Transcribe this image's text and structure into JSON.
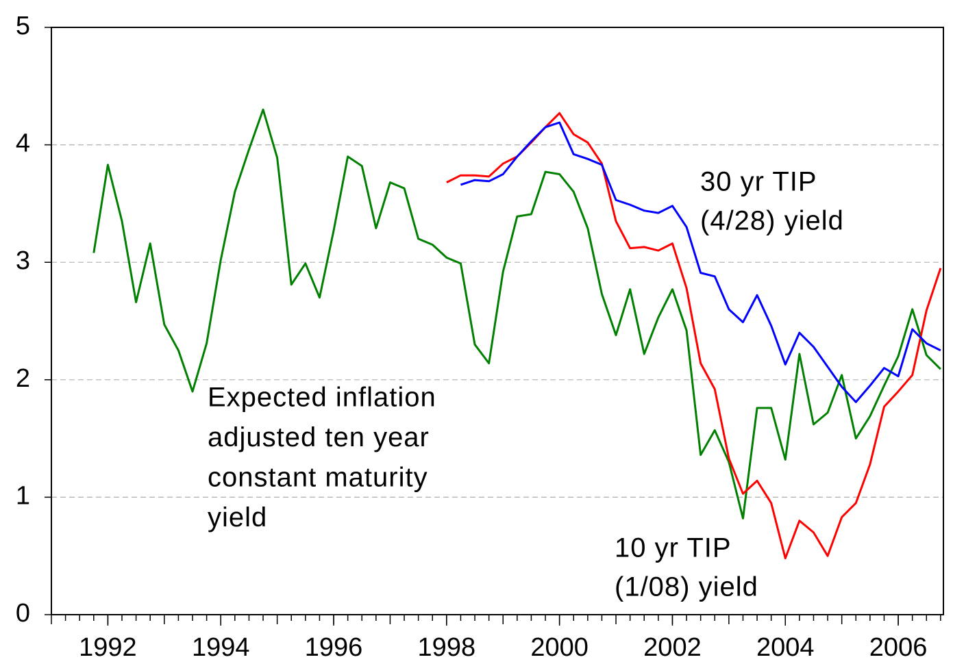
{
  "chart_data": {
    "type": "line",
    "x": [
      1991.75,
      1992,
      1992.25,
      1992.5,
      1992.75,
      1993,
      1993.25,
      1993.5,
      1993.75,
      1994,
      1994.25,
      1994.5,
      1994.75,
      1995,
      1995.25,
      1995.5,
      1995.75,
      1996,
      1996.25,
      1996.5,
      1996.75,
      1997,
      1997.25,
      1997.5,
      1997.75,
      1998,
      1998.25,
      1998.5,
      1998.75,
      1999,
      1999.25,
      1999.5,
      1999.75,
      2000,
      2000.25,
      2000.5,
      2000.75,
      2001,
      2001.25,
      2001.5,
      2001.75,
      2002,
      2002.25,
      2002.5,
      2002.75,
      2003,
      2003.25,
      2003.5,
      2003.75,
      2004,
      2004.25,
      2004.5,
      2004.75,
      2005,
      2005.25,
      2005.5,
      2005.75,
      2006,
      2006.25,
      2006.5,
      2006.75
    ],
    "series": [
      {
        "name": "Expected inflation adjusted ten year constant maturity yield",
        "color": "#008000",
        "values": [
          3.08,
          3.83,
          3.35,
          2.66,
          3.16,
          2.47,
          2.25,
          1.9,
          2.31,
          3.02,
          3.6,
          3.96,
          4.3,
          3.89,
          2.81,
          2.99,
          2.7,
          3.27,
          3.9,
          3.82,
          3.29,
          3.68,
          3.63,
          3.2,
          3.15,
          3.04,
          2.99,
          2.3,
          2.14,
          2.92,
          3.39,
          3.41,
          3.77,
          3.75,
          3.6,
          3.29,
          2.73,
          2.38,
          2.77,
          2.22,
          2.53,
          2.77,
          2.42,
          1.36,
          1.57,
          1.3,
          0.82,
          1.76,
          1.76,
          1.32,
          2.22,
          1.62,
          1.72,
          2.04,
          1.5,
          1.69,
          1.95,
          2.2,
          2.6,
          2.21,
          2.09
        ]
      },
      {
        "name": "10 yr TIP (1/08) yield",
        "color": "#ff0000",
        "values": [
          null,
          null,
          null,
          null,
          null,
          null,
          null,
          null,
          null,
          null,
          null,
          null,
          null,
          null,
          null,
          null,
          null,
          null,
          null,
          null,
          null,
          null,
          null,
          null,
          null,
          3.68,
          3.74,
          3.74,
          3.73,
          3.84,
          3.9,
          4.02,
          4.15,
          4.27,
          4.09,
          4.02,
          3.84,
          3.35,
          3.12,
          3.13,
          3.1,
          3.16,
          2.78,
          2.14,
          1.92,
          1.33,
          1.03,
          1.14,
          0.95,
          0.48,
          0.8,
          0.7,
          0.5,
          0.83,
          0.95,
          1.28,
          1.77,
          1.9,
          2.04,
          2.59,
          2.95
        ]
      },
      {
        "name": "30 yr TIP (4/28) yield",
        "color": "#0000ff",
        "values": [
          null,
          null,
          null,
          null,
          null,
          null,
          null,
          null,
          null,
          null,
          null,
          null,
          null,
          null,
          null,
          null,
          null,
          null,
          null,
          null,
          null,
          null,
          null,
          null,
          null,
          null,
          3.66,
          3.7,
          3.69,
          3.75,
          3.9,
          4.03,
          4.15,
          4.19,
          3.92,
          3.88,
          3.83,
          3.53,
          3.49,
          3.44,
          3.42,
          3.48,
          3.3,
          2.91,
          2.88,
          2.6,
          2.49,
          2.72,
          2.46,
          2.13,
          2.4,
          2.28,
          2.11,
          1.94,
          1.81,
          1.95,
          2.1,
          2.03,
          2.43,
          2.31,
          2.25
        ]
      }
    ],
    "annotations": [
      {
        "lines": [
          "Expected inflation",
          "adjusted ten year",
          "constant maturity",
          "yield"
        ]
      },
      {
        "lines": [
          "30 yr TIP",
          "(4/28) yield"
        ]
      },
      {
        "lines": [
          "10 yr TIP",
          "(1/08) yield"
        ]
      }
    ],
    "xlim": [
      1991,
      2006.8
    ],
    "xticks": [
      1992,
      1994,
      1996,
      1998,
      2000,
      2002,
      2004,
      2006
    ],
    "ylim": [
      0,
      5
    ],
    "yticks": [
      0,
      1,
      2,
      3,
      4,
      5
    ],
    "grid": true
  }
}
